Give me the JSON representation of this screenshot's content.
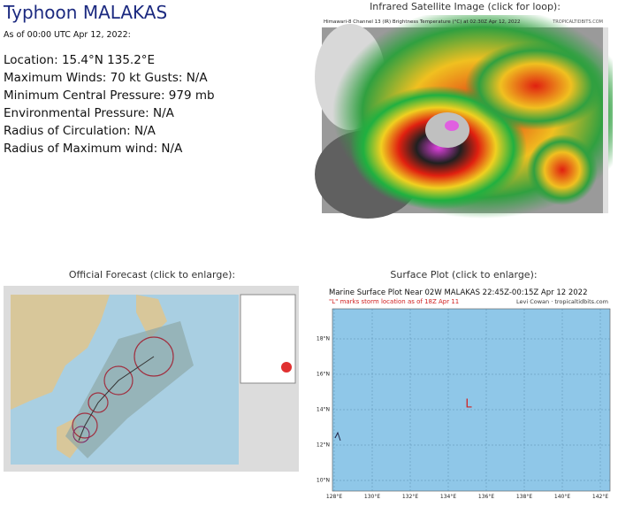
{
  "header": {
    "title": "Typhoon MALAKAS",
    "subtitle": "As of 00:00 UTC Apr 12, 2022:"
  },
  "details": [
    "Location: 15.4°N 135.2°E",
    "Maximum Winds: 70 kt  Gusts: N/A",
    "Minimum Central Pressure: 979 mb",
    "Environmental Pressure: N/A",
    "Radius of Circulation: N/A",
    "Radius of Maximum wind: N/A"
  ],
  "satellite": {
    "caption": "Infrared Satellite Image (click for loop):",
    "image_title": "Himawari-8 Channel 13 (IR) Brightness Temperature (°C) at 02:30Z Apr 12, 2022",
    "credit": "TROPICALTIDBITS.COM"
  },
  "forecast": {
    "caption": "Official Forecast (click to enlarge):"
  },
  "surface": {
    "caption": "Surface Plot (click to enlarge):",
    "image_title": "Marine Surface Plot Near 02W MALAKAS 22:45Z-00:15Z Apr 12 2022",
    "note": "\"L\" marks storm location as of 18Z Apr 11",
    "credit": "Levi Cowan · tropicaltidbits.com",
    "storm_marker": "L",
    "lat_labels": [
      "18°N",
      "16°N",
      "14°N",
      "12°N",
      "10°N"
    ],
    "lon_labels": [
      "128°E",
      "130°E",
      "132°E",
      "134°E",
      "136°E",
      "138°E",
      "140°E",
      "142°E"
    ]
  }
}
